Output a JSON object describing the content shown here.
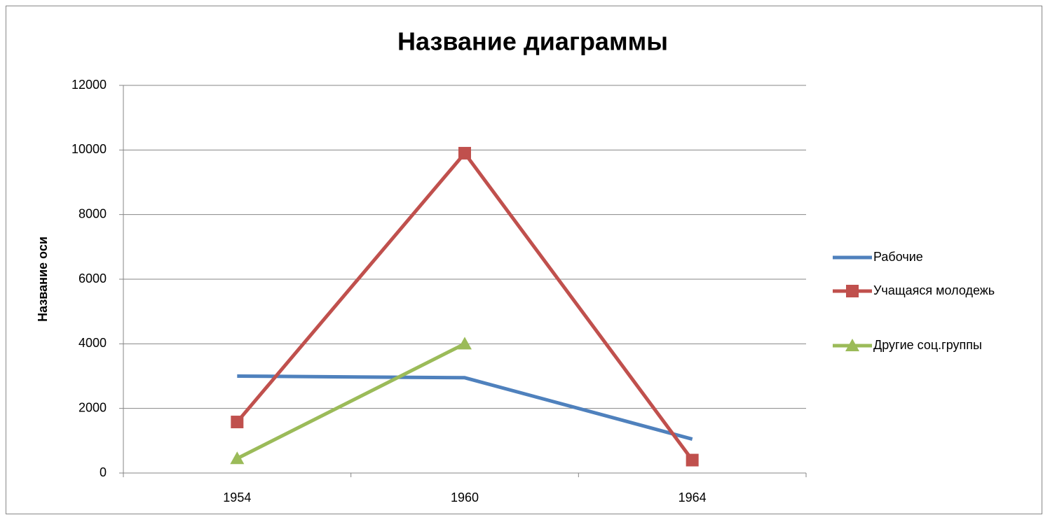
{
  "chart_data": {
    "type": "line",
    "title": "Название диаграммы",
    "y_axis_label": "Название оси",
    "categories": [
      "1954",
      "1960",
      "1964"
    ],
    "series": [
      {
        "name": "Рабочие",
        "color": "#4f81bd",
        "marker": "none",
        "values": [
          3000,
          2950,
          1050
        ]
      },
      {
        "name": "Учащаяся молодежь",
        "color": "#c0504d",
        "marker": "square",
        "values": [
          1580,
          9900,
          400
        ]
      },
      {
        "name": "Другие соц.группы",
        "color": "#9bbb59",
        "marker": "triangle",
        "values": [
          450,
          4000,
          null
        ]
      }
    ],
    "ylim": [
      0,
      12000
    ],
    "yticks": [
      0,
      2000,
      4000,
      6000,
      8000,
      10000,
      12000
    ],
    "grid": true,
    "legend": "right"
  }
}
